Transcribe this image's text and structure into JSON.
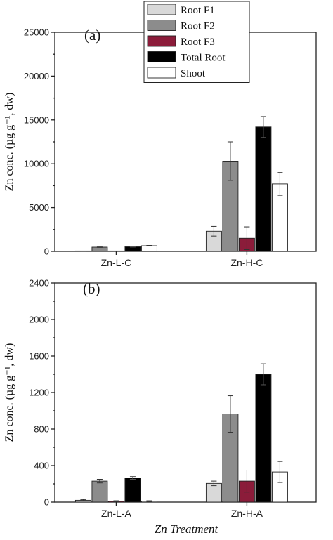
{
  "x_title": "Zn Treatment",
  "legend": {
    "position": "top-center",
    "entries": [
      {
        "label": "Root F1",
        "color": "#d9d9d9"
      },
      {
        "label": "Root F2",
        "color": "#8c8c8c"
      },
      {
        "label": "Root F3",
        "color": "#8b1c3a"
      },
      {
        "label": "Total Root",
        "color": "#000000"
      },
      {
        "label": "Shoot",
        "color": "#ffffff"
      }
    ]
  },
  "chart_data": [
    {
      "type": "bar",
      "panel_label": "(a)",
      "ylabel": "Zn conc. (µg g⁻¹, dw)",
      "ylim": [
        0,
        25000
      ],
      "yticks": [
        "0",
        "5000",
        "10000",
        "15000",
        "20000",
        "25000"
      ],
      "categories": [
        "Zn-L-C",
        "Zn-H-C"
      ],
      "series": [
        {
          "name": "Root F1",
          "color": "#d9d9d9",
          "values": [
            30,
            2300
          ],
          "errors": [
            10,
            550
          ]
        },
        {
          "name": "Root F2",
          "color": "#8c8c8c",
          "values": [
            480,
            10300
          ],
          "errors": [
            30,
            2200
          ]
        },
        {
          "name": "Root F3",
          "color": "#8b1c3a",
          "values": [
            30,
            1500
          ],
          "errors": [
            10,
            1300
          ]
        },
        {
          "name": "Total Root",
          "color": "#000000",
          "values": [
            520,
            14200
          ],
          "errors": [
            30,
            1200
          ]
        },
        {
          "name": "Shoot",
          "color": "#ffffff",
          "values": [
            640,
            7700
          ],
          "errors": [
            40,
            1300
          ]
        }
      ]
    },
    {
      "type": "bar",
      "panel_label": "(b)",
      "ylabel": "Zn conc. (µg g⁻¹, dw)",
      "ylim": [
        0,
        2400
      ],
      "yticks": [
        "0",
        "400",
        "800",
        "1200",
        "1600",
        "2000",
        "2400"
      ],
      "categories": [
        "Zn-L-A",
        "Zn-H-A"
      ],
      "series": [
        {
          "name": "Root F1",
          "color": "#d9d9d9",
          "values": [
            20,
            205
          ],
          "errors": [
            8,
            25
          ]
        },
        {
          "name": "Root F2",
          "color": "#8c8c8c",
          "values": [
            230,
            965
          ],
          "errors": [
            20,
            200
          ]
        },
        {
          "name": "Root F3",
          "color": "#8b1c3a",
          "values": [
            10,
            230
          ],
          "errors": [
            5,
            120
          ]
        },
        {
          "name": "Total Root",
          "color": "#000000",
          "values": [
            265,
            1400
          ],
          "errors": [
            15,
            115
          ]
        },
        {
          "name": "Shoot",
          "color": "#ffffff",
          "values": [
            10,
            330
          ],
          "errors": [
            5,
            115
          ]
        }
      ]
    }
  ]
}
